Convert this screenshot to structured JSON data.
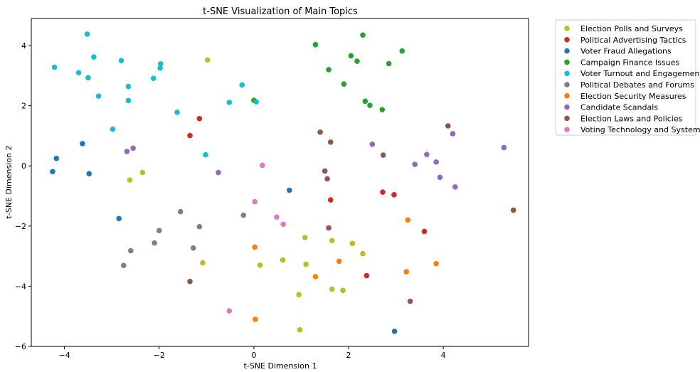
{
  "chart_data": {
    "type": "scatter",
    "title": "t-SNE Visualization of Main Topics",
    "xlabel": "t-SNE Dimension 1",
    "ylabel": "t-SNE Dimension 2",
    "xlim": [
      -4.7,
      5.8
    ],
    "ylim": [
      -6.0,
      4.9
    ],
    "xticks": [
      -4,
      -2,
      0,
      2,
      4
    ],
    "yticks": [
      -6,
      -4,
      -2,
      0,
      2,
      4
    ],
    "grid": false,
    "legend_position": "outside-right",
    "series": [
      {
        "name": "Election Polls and Surveys",
        "color": "#bcbd22",
        "points": [
          [
            -0.98,
            3.52
          ],
          [
            -2.35,
            -0.22
          ],
          [
            -2.62,
            -0.47
          ],
          [
            -1.08,
            -3.22
          ],
          [
            0.13,
            -3.3
          ],
          [
            0.61,
            -3.13
          ],
          [
            1.08,
            -2.38
          ],
          [
            1.1,
            -3.27
          ],
          [
            1.65,
            -2.48
          ],
          [
            2.08,
            -2.58
          ],
          [
            2.3,
            -2.92
          ],
          [
            0.95,
            -4.28
          ],
          [
            1.65,
            -4.1
          ],
          [
            1.88,
            -4.14
          ],
          [
            0.97,
            -5.45
          ]
        ]
      },
      {
        "name": "Political Advertising Tactics",
        "color": "#d62728",
        "points": [
          [
            -1.35,
            1.01
          ],
          [
            -1.15,
            1.57
          ],
          [
            1.62,
            -1.13
          ],
          [
            2.72,
            -0.87
          ],
          [
            2.96,
            -0.96
          ],
          [
            3.6,
            -2.18
          ],
          [
            2.38,
            -3.65
          ]
        ]
      },
      {
        "name": "Voter Fraud Allegations",
        "color": "#1f77b4",
        "points": [
          [
            -4.17,
            0.25
          ],
          [
            -4.25,
            -0.19
          ],
          [
            -3.62,
            0.74
          ],
          [
            -3.48,
            -0.26
          ],
          [
            -2.85,
            -1.75
          ],
          [
            0.75,
            -0.81
          ],
          [
            2.97,
            -5.5
          ]
        ]
      },
      {
        "name": "Campaign Finance Issues",
        "color": "#2ca02c",
        "points": [
          [
            1.3,
            4.03
          ],
          [
            2.3,
            4.35
          ],
          [
            3.13,
            3.82
          ],
          [
            2.05,
            3.66
          ],
          [
            2.18,
            3.48
          ],
          [
            2.85,
            3.4
          ],
          [
            1.58,
            3.2
          ],
          [
            1.9,
            2.72
          ],
          [
            2.35,
            2.15
          ],
          [
            2.45,
            2.01
          ],
          [
            2.71,
            1.87
          ],
          [
            0.0,
            2.18
          ]
        ]
      },
      {
        "name": "Voter Turnout and Engagement",
        "color": "#17becf",
        "points": [
          [
            -3.52,
            4.38
          ],
          [
            -4.21,
            3.28
          ],
          [
            -3.38,
            3.62
          ],
          [
            -3.7,
            3.1
          ],
          [
            -3.5,
            2.93
          ],
          [
            -2.8,
            3.5
          ],
          [
            -1.97,
            3.39
          ],
          [
            -1.98,
            3.25
          ],
          [
            -2.12,
            2.91
          ],
          [
            -2.65,
            2.64
          ],
          [
            -2.65,
            2.17
          ],
          [
            -3.28,
            2.32
          ],
          [
            -0.25,
            2.69
          ],
          [
            -0.52,
            2.11
          ],
          [
            0.05,
            2.13
          ],
          [
            -1.62,
            1.78
          ],
          [
            -2.98,
            1.22
          ],
          [
            -1.02,
            0.37
          ]
        ]
      },
      {
        "name": "Political Debates and Forums",
        "color": "#7f7f7f",
        "points": [
          [
            -1.55,
            -1.52
          ],
          [
            -0.22,
            -1.64
          ],
          [
            -1.15,
            -2.02
          ],
          [
            -2.0,
            -2.15
          ],
          [
            -2.1,
            -2.56
          ],
          [
            -1.28,
            -2.73
          ],
          [
            -2.6,
            -2.82
          ],
          [
            -2.75,
            -3.31
          ]
        ]
      },
      {
        "name": "Election Security Measures",
        "color": "#ff7f0e",
        "points": [
          [
            3.25,
            -1.8
          ],
          [
            0.02,
            -2.7
          ],
          [
            1.8,
            -3.17
          ],
          [
            3.85,
            -3.25
          ],
          [
            3.22,
            -3.52
          ],
          [
            1.3,
            -3.68
          ],
          [
            0.03,
            -5.1
          ]
        ]
      },
      {
        "name": "Candidate Scandals",
        "color": "#9467bd",
        "points": [
          [
            -2.68,
            0.48
          ],
          [
            -2.55,
            0.59
          ],
          [
            -0.75,
            -0.22
          ],
          [
            2.5,
            0.72
          ],
          [
            3.65,
            0.38
          ],
          [
            3.4,
            0.05
          ],
          [
            3.85,
            0.13
          ],
          [
            4.2,
            1.07
          ],
          [
            3.93,
            -0.38
          ],
          [
            4.25,
            -0.7
          ],
          [
            5.28,
            0.61
          ]
        ]
      },
      {
        "name": "Election Laws and Policies",
        "color": "#8c564b",
        "points": [
          [
            1.4,
            1.12
          ],
          [
            1.62,
            0.79
          ],
          [
            4.1,
            1.33
          ],
          [
            2.73,
            0.36
          ],
          [
            1.5,
            -0.17
          ],
          [
            1.55,
            -0.43
          ],
          [
            5.48,
            -1.47
          ],
          [
            1.58,
            -2.06
          ],
          [
            -1.35,
            -3.84
          ],
          [
            3.3,
            -4.5
          ]
        ]
      },
      {
        "name": "Voting Technology and Systems",
        "color": "#e377c2",
        "points": [
          [
            0.18,
            0.02
          ],
          [
            0.02,
            -1.19
          ],
          [
            0.48,
            -1.7
          ],
          [
            0.62,
            -1.94
          ],
          [
            -0.52,
            -4.82
          ]
        ]
      }
    ]
  }
}
